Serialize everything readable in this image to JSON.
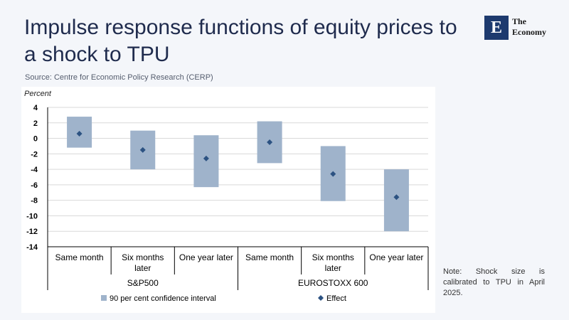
{
  "title": "Impulse response functions of equity prices to a shock to TPU",
  "source": "Source: Centre for Economic Policy Research (CERP)",
  "note": "Note: Shock size is calibrated to TPU in April 2025.",
  "logo": {
    "letter": "E",
    "line1": "The",
    "line2": "Economy"
  },
  "chart_data": {
    "type": "range-bar",
    "ylabel": "Percent",
    "ylim": [
      -14,
      4
    ],
    "yticks": [
      4,
      2,
      0,
      -2,
      -4,
      -6,
      -8,
      -10,
      -12,
      -14
    ],
    "categories": [
      "Same month",
      "Six months later",
      "One year later",
      "Same month",
      "Six months later",
      "One year later"
    ],
    "category_lines": [
      [
        "Same month"
      ],
      [
        "Six months",
        "later"
      ],
      [
        "One year later"
      ],
      [
        "Same month"
      ],
      [
        "Six months",
        "later"
      ],
      [
        "One year later"
      ]
    ],
    "groups": [
      {
        "name": "S&P500",
        "categories": [
          0,
          1,
          2
        ]
      },
      {
        "name": "EUROSTOXX 600",
        "categories": [
          3,
          4,
          5
        ]
      }
    ],
    "series": [
      {
        "name": "90 per cent confidence interval",
        "low": [
          -1.2,
          -4.0,
          -6.3,
          -3.2,
          -8.1,
          -12.0
        ],
        "high": [
          2.8,
          1.0,
          0.4,
          2.2,
          -1.0,
          -4.0
        ]
      },
      {
        "name": "Effect",
        "values": [
          0.6,
          -1.5,
          -2.6,
          -0.5,
          -4.6,
          -7.6
        ]
      }
    ],
    "colors": {
      "band": "#9fb3cb",
      "effect": "#2c5282",
      "grid": "#d9d9d9",
      "axis": "#000000"
    }
  }
}
